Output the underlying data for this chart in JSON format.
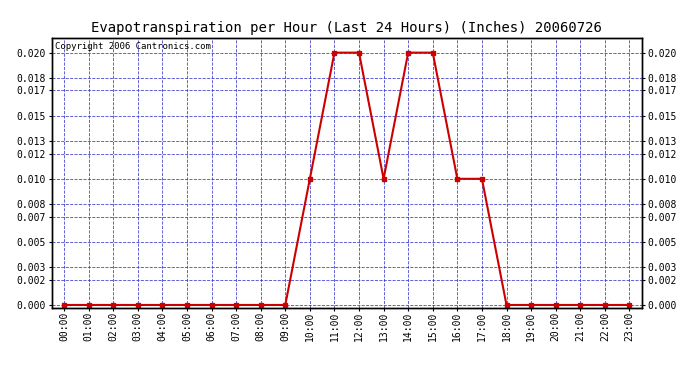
{
  "title": "Evapotranspiration per Hour (Last 24 Hours) (Inches) 20060726",
  "copyright": "Copyright 2006 Cantronics.com",
  "hours": [
    "00:00",
    "01:00",
    "02:00",
    "03:00",
    "04:00",
    "05:00",
    "06:00",
    "07:00",
    "08:00",
    "09:00",
    "10:00",
    "11:00",
    "12:00",
    "13:00",
    "14:00",
    "15:00",
    "16:00",
    "17:00",
    "18:00",
    "19:00",
    "20:00",
    "21:00",
    "22:00",
    "23:00"
  ],
  "values": [
    0.0,
    0.0,
    0.0,
    0.0,
    0.0,
    0.0,
    0.0,
    0.0,
    0.0,
    0.0,
    0.01,
    0.02,
    0.02,
    0.01,
    0.02,
    0.02,
    0.01,
    0.01,
    0.0,
    0.0,
    0.0,
    0.0,
    0.0,
    0.0
  ],
  "line_color": "#cc0000",
  "marker_color": "#cc0000",
  "bg_color": "#ffffff",
  "plot_bg_color": "#ffffff",
  "grid_color": "#3333cc",
  "axis_color": "#000000",
  "title_color": "#000000",
  "copyright_color": "#000000",
  "title_fontsize": 10,
  "copyright_fontsize": 6.5,
  "tick_label_fontsize": 7,
  "ytick_labels": [
    0.0,
    0.002,
    0.003,
    0.005,
    0.007,
    0.008,
    0.01,
    0.012,
    0.013,
    0.015,
    0.017,
    0.018,
    0.02
  ],
  "ylim": [
    -0.0002,
    0.0212
  ],
  "xlim": [
    -0.5,
    23.5
  ]
}
